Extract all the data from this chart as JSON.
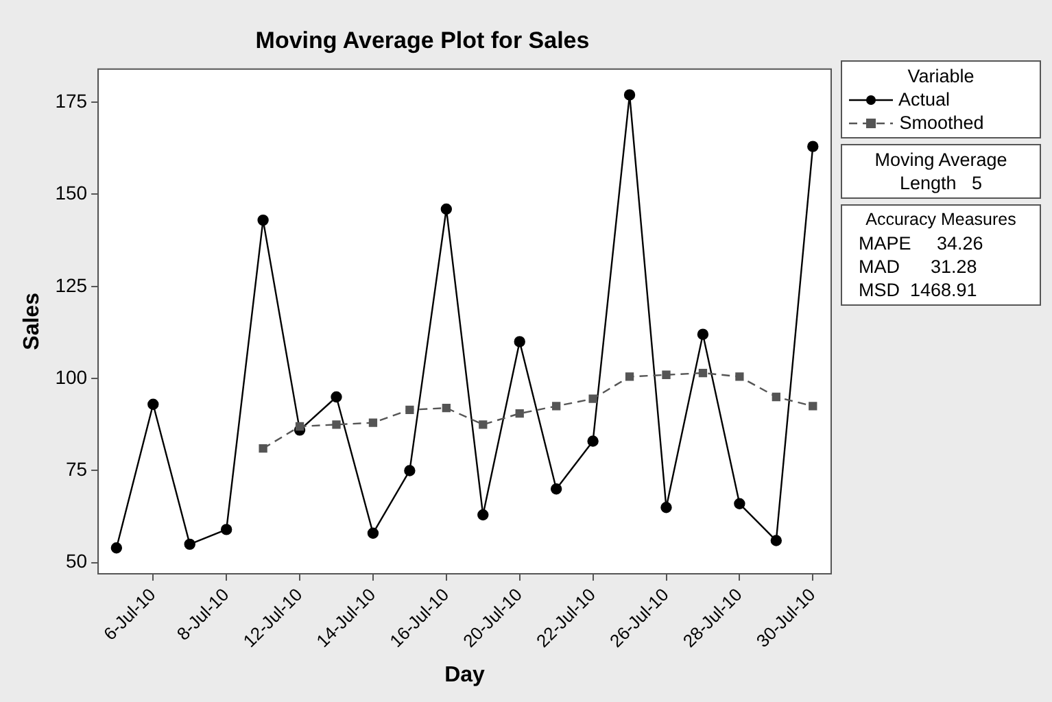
{
  "chart_data": {
    "type": "line",
    "title": "Moving Average Plot for Sales",
    "xlabel": "Day",
    "ylabel": "Sales",
    "legend_title": "Variable",
    "categories": [
      null,
      "6-Jul-10",
      null,
      "8-Jul-10",
      null,
      "12-Jul-10",
      null,
      "14-Jul-10",
      null,
      "16-Jul-10",
      null,
      "20-Jul-10",
      null,
      "22-Jul-10",
      null,
      "26-Jul-10",
      null,
      "28-Jul-10",
      null,
      "30-Jul-10"
    ],
    "series": [
      {
        "name": "Actual",
        "color": "#000000",
        "marker": "circle",
        "line_style": "solid",
        "values": [
          54,
          93,
          55,
          59,
          143,
          86,
          95,
          58,
          75,
          146,
          63,
          110,
          70,
          83,
          177,
          65,
          112,
          66,
          56,
          163
        ]
      },
      {
        "name": "Smoothed",
        "color": "#555555",
        "marker": "square",
        "line_style": "dashed",
        "values": [
          null,
          null,
          null,
          null,
          81,
          87,
          87.5,
          88,
          91.5,
          92,
          87.5,
          90.5,
          92.5,
          94.5,
          100.5,
          101,
          101.5,
          100.5,
          95,
          92.5
        ]
      }
    ],
    "ylim": [
      47,
      184
    ],
    "yticks": [
      50,
      75,
      100,
      125,
      150,
      175
    ],
    "legend": "right",
    "annotations": [
      "Moving Average",
      "Length   5",
      "Accuracy Measures",
      "MAPE     34.26",
      "MAD      31.28",
      "MSD  1468.91"
    ]
  }
}
